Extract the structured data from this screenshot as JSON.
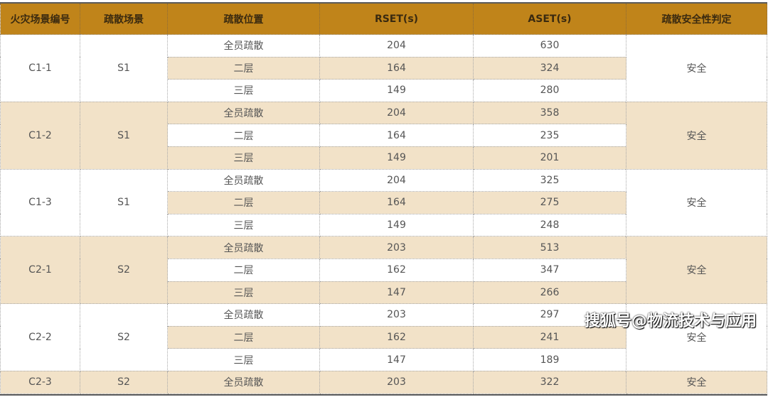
{
  "headers": [
    "火灾场景编号",
    "疏散场景",
    "疏散位置",
    "RSET(s)",
    "ASET(s)",
    "疏散安全性判定"
  ],
  "groups": [
    {
      "id": "C1-1",
      "scene": "S1",
      "verdict": "安全",
      "rows": [
        [
          "全员疏散",
          "204",
          "630"
        ],
        [
          "二层",
          "164",
          "324"
        ],
        [
          "三层",
          "149",
          "280"
        ]
      ]
    },
    {
      "id": "C1-2",
      "scene": "S1",
      "verdict": "安全",
      "rows": [
        [
          "全员疏散",
          "204",
          "358"
        ],
        [
          "二层",
          "164",
          "235"
        ],
        [
          "三层",
          "149",
          "201"
        ]
      ]
    },
    {
      "id": "C1-3",
      "scene": "S1",
      "verdict": "安全",
      "rows": [
        [
          "全员疏散",
          "204",
          "325"
        ],
        [
          "二层",
          "164",
          "275"
        ],
        [
          "三层",
          "149",
          "248"
        ]
      ]
    },
    {
      "id": "C2-1",
      "scene": "S2",
      "verdict": "安全",
      "rows": [
        [
          "全员疏散",
          "203",
          "513"
        ],
        [
          "二层",
          "162",
          "347"
        ],
        [
          "三层",
          "147",
          "266"
        ]
      ]
    },
    {
      "id": "C2-2",
      "scene": "S2",
      "verdict": "安全",
      "rows": [
        [
          "全员疏散",
          "203",
          "297"
        ],
        [
          "二层",
          "162",
          "241"
        ],
        [
          "三层",
          "147",
          "189"
        ]
      ]
    },
    {
      "id": "C2-3",
      "scene": "S2",
      "verdict": "安全",
      "rows": [
        [
          "全员疏散",
          "203",
          "322"
        ]
      ]
    }
  ],
  "colors": {
    "header": "#c0841a",
    "shade": "#f2e2c8"
  },
  "watermark": "搜狐号@物流技术与应用"
}
